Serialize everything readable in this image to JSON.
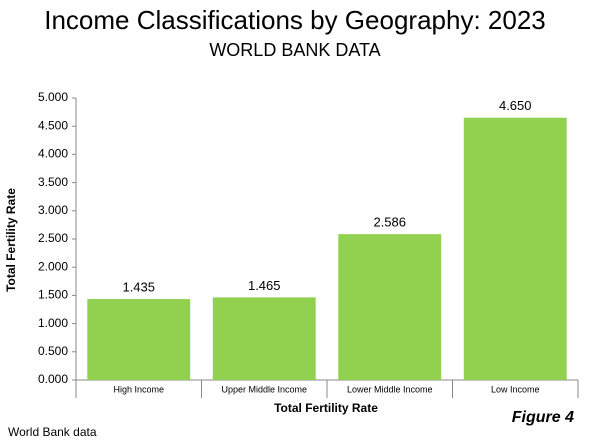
{
  "chart_data": {
    "type": "bar",
    "title": "Income Classifications by Geography: 2023",
    "subtitle": "WORLD BANK DATA",
    "categories": [
      "High Income",
      "Upper Middle Income",
      "Lower Middle Income",
      "Low Income"
    ],
    "values": [
      1.435,
      1.465,
      2.586,
      4.65
    ],
    "value_labels": [
      "1.435",
      "1.465",
      "2.586",
      "4.650"
    ],
    "color": "#92d050",
    "ylim": [
      0,
      5
    ],
    "yticks": [
      {
        "value": 0,
        "label": "0.000"
      },
      {
        "value": 0.5,
        "label": "0.500"
      },
      {
        "value": 1,
        "label": "1.000"
      },
      {
        "value": 1.5,
        "label": "1.500"
      },
      {
        "value": 2,
        "label": "2.000"
      },
      {
        "value": 2.5,
        "label": "2.500"
      },
      {
        "value": 3,
        "label": "3.000"
      },
      {
        "value": 3.5,
        "label": "3.500"
      },
      {
        "value": 4,
        "label": "4.000"
      },
      {
        "value": 4.5,
        "label": "4.500"
      },
      {
        "value": 5,
        "label": "5.000"
      }
    ],
    "x_label": "Total Fertility Rate",
    "y_label": "Total Fertility Rate",
    "source": "World Bank data",
    "figure_label": "Figure 4"
  }
}
